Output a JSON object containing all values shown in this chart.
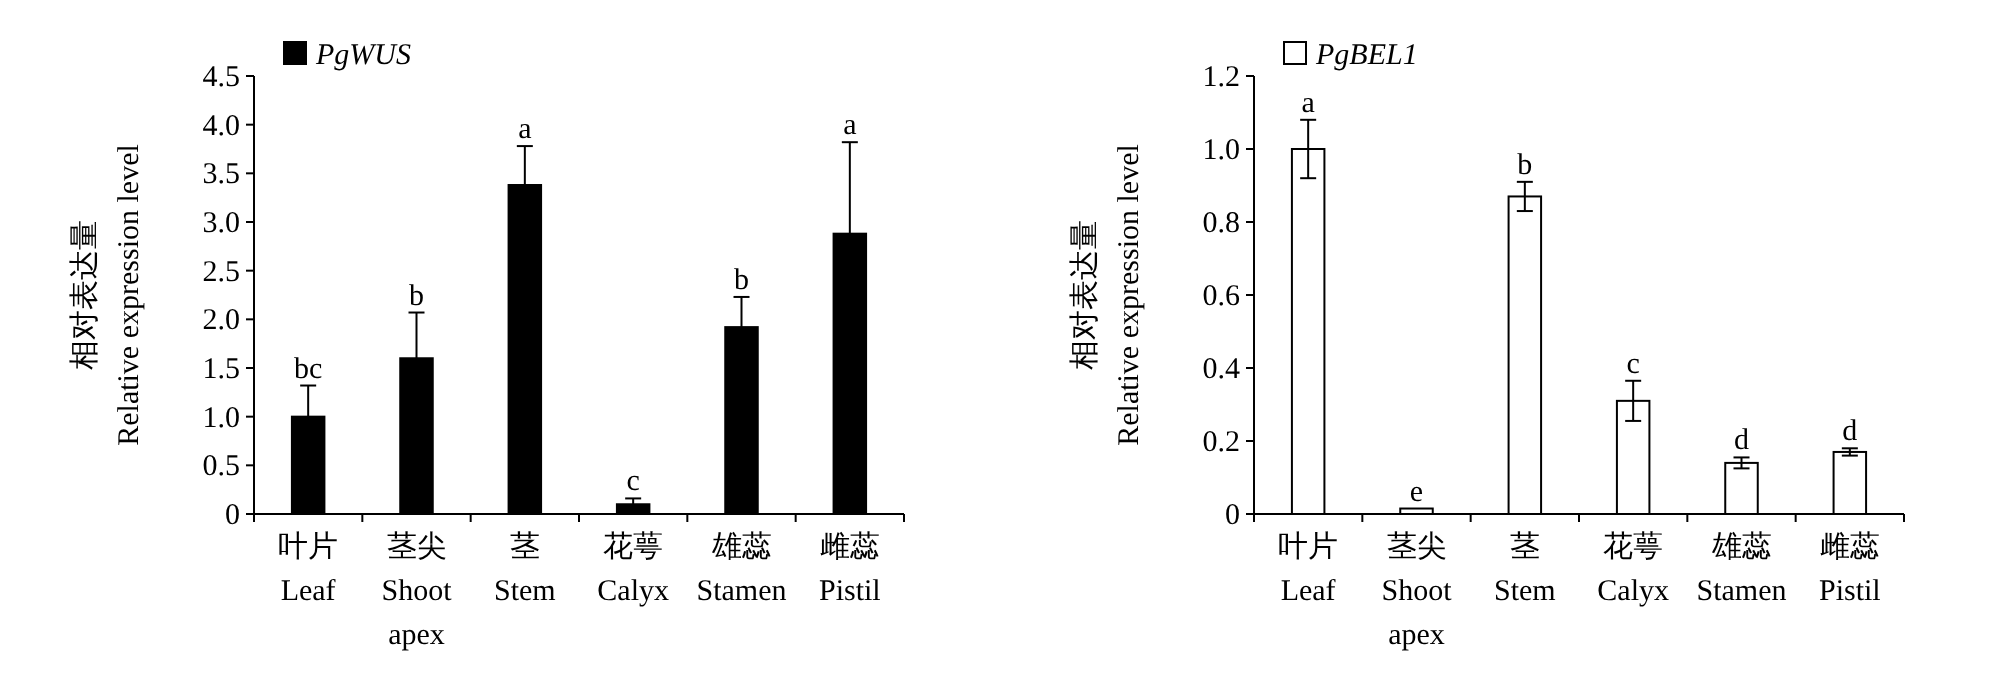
{
  "chart_data": [
    {
      "type": "bar",
      "categories": [
        "叶片\nLeaf",
        "茎尖\nShoot\napex",
        "茎\nStem",
        "花萼\nCalyx",
        "雄蕊\nStamen",
        "雌蕊\nPistil"
      ],
      "ylabel": "相对表达量\nRelative expression level",
      "series": [
        {
          "name": "PgWUS",
          "color": "#000000",
          "values": [
            1.0,
            1.6,
            3.38,
            0.1,
            1.92,
            2.88
          ],
          "errors": [
            [
              1.0,
              1.32
            ],
            [
              1.6,
              2.07
            ],
            [
              3.38,
              3.78
            ],
            [
              0.1,
              0.16
            ],
            [
              1.92,
              2.23
            ],
            [
              2.88,
              3.82
            ]
          ]
        }
      ],
      "ylim": [
        0,
        4.5
      ],
      "yticks": [
        0,
        {
          "value": 0.5,
          "label": "0.5"
        },
        {
          "value": 1,
          "label": "1.0"
        },
        {
          "value": 1.5,
          "label": "1.5"
        },
        {
          "value": 2,
          "label": "2.0"
        },
        {
          "value": 2.5,
          "label": "2.5"
        },
        {
          "value": 3,
          "label": "3.0"
        },
        {
          "value": 3.5,
          "label": "3.5"
        },
        {
          "value": 4,
          "label": "4.0"
        },
        {
          "value": 4.5,
          "label": "4.5"
        }
      ],
      "annotations": [
        {
          "text": "bc",
          "x": "叶片\nLeaf",
          "y": 1.32
        },
        {
          "text": "b",
          "x": "茎尖\nShoot\napex",
          "y": 2.07
        },
        {
          "text": "a",
          "x": "茎\nStem",
          "y": 3.78
        },
        {
          "text": "c",
          "x": "花萼\nCalyx",
          "y": 0.16
        },
        {
          "text": "b",
          "x": "雄蕊\nStamen",
          "y": 2.23
        },
        {
          "text": "a",
          "x": "雌蕊\nPistil",
          "y": 3.82
        }
      ],
      "legend": "top left",
      "grid": false
    },
    {
      "type": "bar",
      "categories": [
        "叶片\nLeaf",
        "茎尖\nShoot\napex",
        "茎\nStem",
        "花萼\nCalyx",
        "雄蕊\nStamen",
        "雌蕊\nPistil"
      ],
      "ylabel": "相对表达量\nRelative expression level",
      "series": [
        {
          "name": "PgBEL1",
          "color": "#ffffff",
          "values": [
            1.0,
            0.015,
            0.87,
            0.31,
            0.14,
            0.17
          ],
          "errors": [
            0.08,
            null,
            0.04,
            0.055,
            0.015,
            0.01
          ]
        }
      ],
      "ylim": [
        0,
        1.2
      ],
      "yticks": [
        0,
        {
          "value": 0.2,
          "label": "0.2"
        },
        {
          "value": 0.4,
          "label": "0.4"
        },
        {
          "value": 0.6,
          "label": "0.6"
        },
        {
          "value": 0.8,
          "label": "0.8"
        },
        {
          "value": 1,
          "label": "1.0"
        },
        {
          "value": 1.2,
          "label": "1.2"
        }
      ],
      "annotations": [
        {
          "text": "a",
          "x": "叶片\nLeaf",
          "y": 1.08
        },
        {
          "text": "e",
          "x": "茎尖\nShoot\napex",
          "y": 0.015
        },
        {
          "text": "b",
          "x": "茎\nStem",
          "y": 0.91
        },
        {
          "text": "c",
          "x": "花萼\nCalyx",
          "y": 0.365
        },
        {
          "text": "d",
          "x": "雄蕊\nStamen",
          "y": 0.155
        },
        {
          "text": "d",
          "x": "雌蕊\nPistil",
          "y": 0.18
        }
      ],
      "legend": "top left",
      "grid": false
    }
  ]
}
